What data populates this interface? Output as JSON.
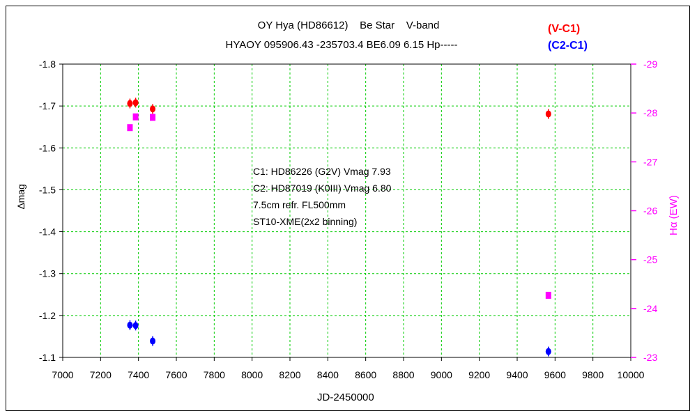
{
  "chart_data": {
    "type": "scatter",
    "title": "OY Hya (HD86612)    Be Star    V-band",
    "subtitle": "HYAOY 095906.43 -235703.4 BE6.09 6.15 Hp-----",
    "xlabel": "JD-2450000",
    "ylabel": "∆mag",
    "y2label": "Hα (EW)",
    "xlim": [
      7000,
      10000
    ],
    "ylim": [
      -1.8,
      -1.1
    ],
    "y_inverted": true,
    "y2lim": [
      -29,
      -23
    ],
    "x_ticks": [
      "7000",
      "7200",
      "7400",
      "7600",
      "7800",
      "8000",
      "8200",
      "8400",
      "8600",
      "8800",
      "9000",
      "9200",
      "9400",
      "9600",
      "9800",
      "10000"
    ],
    "y_ticks": [
      "-1.8",
      "-1.7",
      "-1.6",
      "-1.5",
      "-1.4",
      "-1.3",
      "-1.2",
      "-1.1"
    ],
    "y2_ticks": [
      "-29",
      "-28",
      "-27",
      "-26",
      "-25",
      "-24",
      "-23"
    ],
    "grid": true,
    "legend_entries": [
      {
        "label": "(V-C1)",
        "color": "#ff0000"
      },
      {
        "label": "(C2-C1)",
        "color": "#0000ff"
      }
    ],
    "annotations": [
      "C1: HD86226 (G2V) Vmag 7.93",
      "C2: HD87019 (K0III) Vmag 6.80",
      "7.5cm refr. FL500mm",
      "ST10-XME(2x2 binning)"
    ],
    "series": [
      {
        "name": "(V-C1)",
        "axis": "left",
        "marker": "circle",
        "color": "#ff0000",
        "x": [
          7355,
          7385,
          7475,
          9565
        ],
        "y": [
          -1.706,
          -1.708,
          -1.693,
          -1.681
        ]
      },
      {
        "name": "(C2-C1)",
        "axis": "left",
        "marker": "circle",
        "color": "#0000ff",
        "x": [
          7355,
          7385,
          7475,
          9565
        ],
        "y": [
          -1.177,
          -1.176,
          -1.139,
          -1.114
        ]
      },
      {
        "axis": "right",
        "marker": "square",
        "color": "#ff00ff",
        "x": [
          7355,
          7385,
          7475,
          9565
        ],
        "y": [
          -27.7,
          -27.92,
          -27.91,
          -24.27
        ]
      }
    ]
  }
}
